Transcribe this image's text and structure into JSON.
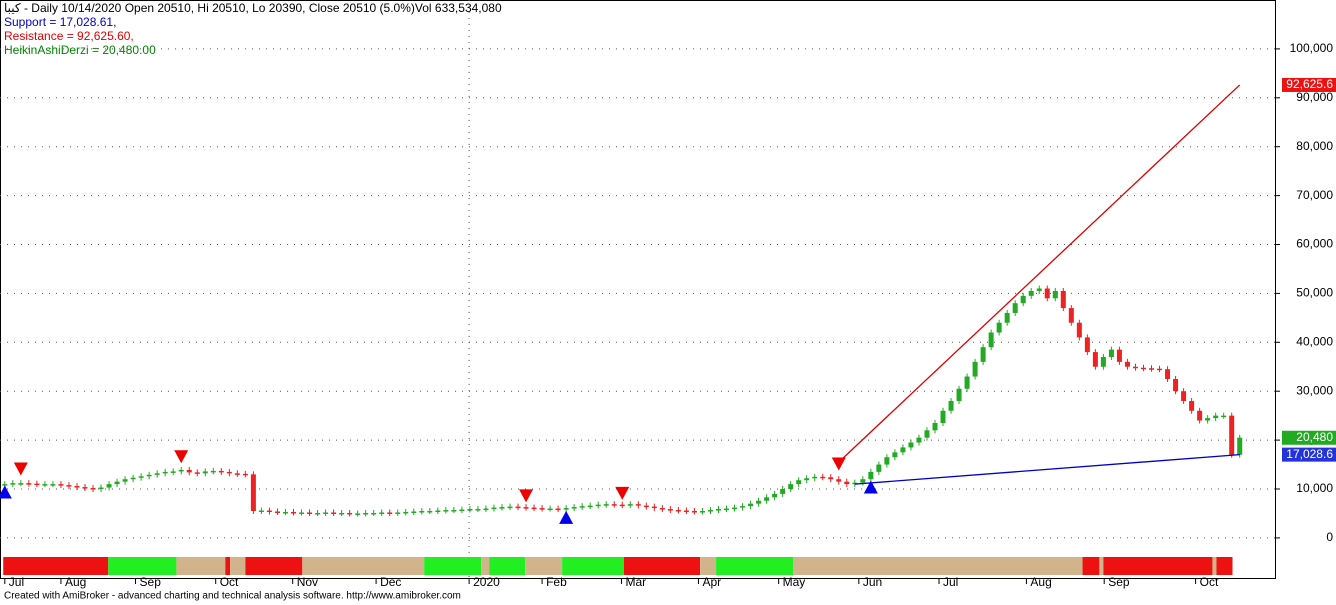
{
  "chart_data": {
    "type": "candlestick",
    "title": "كيبا - Daily 10/14/2020 Open 20510, Hi 20510, Lo 20390, Close 20510 (5.0%)Vol 633,534,080",
    "legend": [
      {
        "text": "Support = 17,028.61,",
        "color": "#0000cc"
      },
      {
        "text": "Resistance = 92,625.60,",
        "color": "#dd0000"
      },
      {
        "text": "HeikinAshiDerzi = 20,480.00",
        "color": "#008800"
      }
    ],
    "footer": "Created with AmiBroker - advanced charting and technical analysis software. http://www.amibroker.com",
    "up_color": "#22aa22",
    "down_color": "#ee2222",
    "values": [
      11000,
      11200,
      11200,
      11100,
      11000,
      11000,
      11000,
      10800,
      10600,
      10400,
      10200,
      10000,
      10300,
      11000,
      11500,
      12000,
      12300,
      12600,
      12900,
      13200,
      13500,
      13600,
      13900,
      13400,
      13200,
      13600,
      13700,
      13500,
      13200,
      13100,
      13000,
      5500,
      5600,
      5400,
      5300,
      5300,
      5200,
      5200,
      5100,
      5100,
      5200,
      5100,
      5100,
      5000,
      5000,
      5100,
      5100,
      5200,
      5100,
      5200,
      5300,
      5400,
      5500,
      5500,
      5600,
      5700,
      5700,
      5800,
      5900,
      5900,
      6000,
      6200,
      6300,
      6400,
      6300,
      6200,
      6100,
      6000,
      6000,
      5900,
      6100,
      6300,
      6500,
      6600,
      6800,
      6900,
      6800,
      6700,
      6900,
      6600,
      6400,
      6100,
      5900,
      5700,
      5600,
      5500,
      5400,
      5500,
      5700,
      5900,
      6000,
      6200,
      6500,
      7000,
      7600,
      8300,
      9000,
      10000,
      11000,
      11800,
      12200,
      12500,
      12400,
      12000,
      11500,
      11000,
      11300,
      12000,
      13500,
      15000,
      16500,
      17500,
      18500,
      19500,
      20500,
      22000,
      23500,
      26000,
      28000,
      30500,
      33000,
      36000,
      39000,
      42000,
      44000,
      46000,
      48000,
      49500,
      50500,
      51000,
      49000,
      50500,
      47000,
      44000,
      41000,
      38000,
      35000,
      37000,
      38500,
      36000,
      35000,
      34800,
      34700,
      34600,
      34500,
      32500,
      30000,
      28000,
      26000,
      24000,
      24500,
      25000,
      25000,
      17000,
      20500
    ],
    "lines": [
      {
        "name": "Resistance",
        "color": "#dd0000",
        "x": [
          104,
          154
        ],
        "y": [
          15500,
          92625.6
        ]
      },
      {
        "name": "Support",
        "color": "#0000cc",
        "x": [
          106,
          154
        ],
        "y": [
          11000,
          17028.61
        ]
      }
    ],
    "sell_signals": {
      "color": "#ee0000",
      "x": [
        2,
        22,
        65,
        77,
        104
      ],
      "y": [
        14000,
        16500,
        8500,
        9000,
        15000
      ]
    },
    "buy_signals": {
      "color": "#0000ee",
      "x": [
        0,
        70,
        108
      ],
      "y": [
        9500,
        4300,
        10500
      ]
    },
    "ribbon": [
      {
        "from": -0.2,
        "to": 12.9,
        "color": "#ee1111"
      },
      {
        "from": 12.9,
        "to": 21.4,
        "color": "#22ee22"
      },
      {
        "from": 21.4,
        "to": 27.5,
        "color": "#d2b48c"
      },
      {
        "from": 27.5,
        "to": 28.1,
        "color": "#ee1111"
      },
      {
        "from": 28.1,
        "to": 30,
        "color": "#d2b48c"
      },
      {
        "from": 30,
        "to": 37.1,
        "color": "#ee1111"
      },
      {
        "from": 37.1,
        "to": 52.3,
        "color": "#d2b48c"
      },
      {
        "from": 52.3,
        "to": 59.4,
        "color": "#22ee22"
      },
      {
        "from": 59.4,
        "to": 60.4,
        "color": "#d2b48c"
      },
      {
        "from": 60.4,
        "to": 64.9,
        "color": "#22ee22"
      },
      {
        "from": 64.9,
        "to": 69.5,
        "color": "#d2b48c"
      },
      {
        "from": 69.5,
        "to": 77.2,
        "color": "#22ee22"
      },
      {
        "from": 77.2,
        "to": 86.7,
        "color": "#ee1111"
      },
      {
        "from": 86.7,
        "to": 88.7,
        "color": "#d2b48c"
      },
      {
        "from": 88.7,
        "to": 98.3,
        "color": "#22ee22"
      },
      {
        "from": 98.3,
        "to": 134.4,
        "color": "#d2b48c"
      },
      {
        "from": 134.4,
        "to": 136.5,
        "color": "#ee1111"
      },
      {
        "from": 136.5,
        "to": 137,
        "color": "#d2b48c"
      },
      {
        "from": 137,
        "to": 150.6,
        "color": "#ee1111"
      },
      {
        "from": 150.6,
        "to": 151.1,
        "color": "#d2b48c"
      },
      {
        "from": 151.1,
        "to": 153.1,
        "color": "#ee1111"
      }
    ],
    "price_labels": [
      {
        "value": 92625.6,
        "label": "92,625.6",
        "color": "#ee1111"
      },
      {
        "value": 20480,
        "label": "20,480",
        "color": "#22aa22"
      },
      {
        "value": 17028.61,
        "label": "17,028.6",
        "color": "#2233dd"
      }
    ],
    "xlim": [
      -0.6,
      158.4
    ],
    "xticks": [
      {
        "value": 0,
        "label": "Jul"
      },
      {
        "value": 7,
        "label": "Aug"
      },
      {
        "value": 16.3,
        "label": "Sep"
      },
      {
        "value": 26.3,
        "label": "Oct"
      },
      {
        "value": 35.9,
        "label": "Nov"
      },
      {
        "value": 46.3,
        "label": "Dec"
      },
      {
        "value": 57.9,
        "label": "2020"
      },
      {
        "value": 67,
        "label": "Feb"
      },
      {
        "value": 76.9,
        "label": "Mar"
      },
      {
        "value": 86.5,
        "label": "Apr"
      },
      {
        "value": 96.5,
        "label": "May"
      },
      {
        "value": 106.5,
        "label": "Jun"
      },
      {
        "value": 116.5,
        "label": "Jul"
      },
      {
        "value": 127.4,
        "label": "Aug"
      },
      {
        "value": 137.1,
        "label": "Sep"
      },
      {
        "value": 148.5,
        "label": "Oct"
      }
    ],
    "ylim": [
      -8200,
      110000
    ],
    "yticks": [
      0,
      {
        "value": 10000,
        "label": "10,000"
      },
      {
        "value": 20000,
        "label": "20,000"
      },
      {
        "value": 30000,
        "label": "30,000"
      },
      {
        "value": 40000,
        "label": "40,000"
      },
      {
        "value": 50000,
        "label": "50,000"
      },
      {
        "value": 60000,
        "label": "60,000"
      },
      {
        "value": 70000,
        "label": "70,000"
      },
      {
        "value": 80000,
        "label": "80,000"
      },
      {
        "value": 90000,
        "label": "90,000"
      },
      {
        "value": 100000,
        "label": "100,000"
      }
    ],
    "grid": true
  }
}
